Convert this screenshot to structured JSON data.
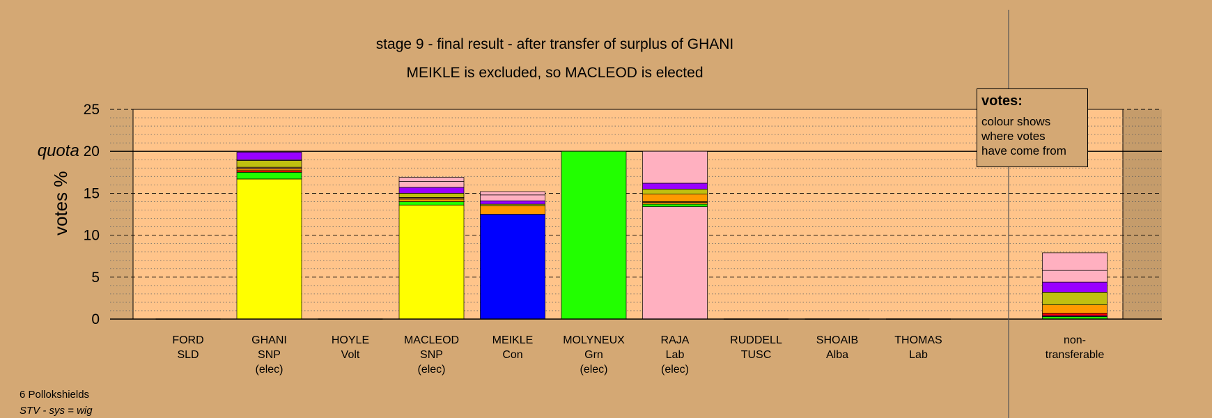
{
  "title": "stage 9 - final result - after transfer of surplus of GHANI",
  "subtitle": "MEIKLE is excluded, so MACLEOD is elected",
  "legend": {
    "title": "votes:",
    "lines": [
      "colour shows",
      "where votes",
      "have come from"
    ]
  },
  "footer": {
    "ward": "6 Pollokshields",
    "system": "STV - sys = wig"
  },
  "colors": {
    "background": "#d4a874",
    "plot_area": "#ffc48a",
    "SNP": "#ffff00",
    "Con": "#0000ff",
    "Grn": "#22ff00",
    "Lab": "#ffb0c0",
    "orange": "#ff9900",
    "olive": "#c0c010",
    "purple": "#9900ff",
    "brown": "#996633",
    "red": "#ff0000"
  },
  "chart_data": {
    "type": "bar",
    "stacked": true,
    "ylabel": "votes %",
    "ylim": [
      0,
      25
    ],
    "yticks": [
      "0",
      "5",
      "10",
      "15",
      "quota 20",
      "25"
    ],
    "quota": 20,
    "grid": true,
    "candidates": [
      {
        "name": "FORD",
        "party": "SLD",
        "status": "",
        "segments": []
      },
      {
        "name": "GHANI",
        "party": "SNP",
        "status": "(elec)",
        "segments": [
          {
            "color": "#ffff00",
            "value": 16.7
          },
          {
            "color": "#22ff00",
            "value": 0.8
          },
          {
            "color": "#ff0000",
            "value": 0.2
          },
          {
            "color": "#ff9900",
            "value": 0.2
          },
          {
            "color": "#996633",
            "value": 0.2
          },
          {
            "color": "#c0c010",
            "value": 0.8
          },
          {
            "color": "#ffb0c0",
            "value": 0.1
          },
          {
            "color": "#9900ff",
            "value": 0.9
          }
        ]
      },
      {
        "name": "HOYLE",
        "party": "Volt",
        "status": "",
        "segments": []
      },
      {
        "name": "MACLEOD",
        "party": "SNP",
        "status": "(elec)",
        "segments": [
          {
            "color": "#ffff00",
            "value": 13.6
          },
          {
            "color": "#22ff00",
            "value": 0.4
          },
          {
            "color": "#ff9900",
            "value": 0.3
          },
          {
            "color": "#996633",
            "value": 0.2
          },
          {
            "color": "#c0c010",
            "value": 0.5
          },
          {
            "color": "#9900ff",
            "value": 0.7
          },
          {
            "color": "#ffb0c0",
            "value": 0.7
          },
          {
            "color": "#ffb0c0",
            "value": 0.5
          }
        ]
      },
      {
        "name": "MEIKLE",
        "party": "Con",
        "status": "",
        "segments": [
          {
            "color": "#0000ff",
            "value": 12.5
          },
          {
            "color": "#ff9900",
            "value": 1.0
          },
          {
            "color": "#c0c010",
            "value": 0.2
          },
          {
            "color": "#9900ff",
            "value": 0.4
          },
          {
            "color": "#ffb0c0",
            "value": 0.7
          },
          {
            "color": "#ffb0c0",
            "value": 0.4
          }
        ]
      },
      {
        "name": "MOLYNEUX",
        "party": "Grn",
        "status": "(elec)",
        "segments": [
          {
            "color": "#22ff00",
            "value": 20.0
          }
        ]
      },
      {
        "name": "RAJA",
        "party": "Lab",
        "status": "(elec)",
        "segments": [
          {
            "color": "#ffb0c0",
            "value": 13.4
          },
          {
            "color": "#22ff00",
            "value": 0.3
          },
          {
            "color": "#ff9900",
            "value": 0.2
          },
          {
            "color": "#996633",
            "value": 0.1
          },
          {
            "color": "#ff9900",
            "value": 0.9
          },
          {
            "color": "#c0c010",
            "value": 0.6
          },
          {
            "color": "#9900ff",
            "value": 0.7
          },
          {
            "color": "#ffb0c0",
            "value": 3.8
          }
        ]
      },
      {
        "name": "RUDDELL",
        "party": "TUSC",
        "status": "",
        "segments": []
      },
      {
        "name": "SHOAIB",
        "party": "Alba",
        "status": "",
        "segments": []
      },
      {
        "name": "THOMAS",
        "party": "Lab",
        "status": "",
        "segments": []
      }
    ],
    "non_transferable": {
      "label_line1": "non-",
      "label_line2": "transferable",
      "segments": [
        {
          "color": "#22ff00",
          "value": 0.3
        },
        {
          "color": "#0000ff",
          "value": 0.1
        },
        {
          "color": "#ff0000",
          "value": 0.3
        },
        {
          "color": "#ff9900",
          "value": 1.0
        },
        {
          "color": "#c0c010",
          "value": 1.5
        },
        {
          "color": "#9900ff",
          "value": 1.2
        },
        {
          "color": "#ffb0c0",
          "value": 1.4
        },
        {
          "color": "#ffb0c0",
          "value": 2.1
        }
      ]
    }
  }
}
